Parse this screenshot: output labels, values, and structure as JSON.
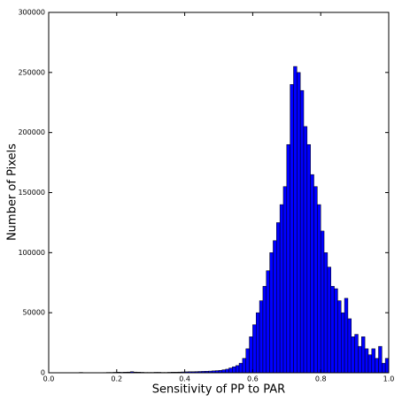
{
  "chart_data": {
    "type": "histogram",
    "xlabel": "Sensitivity of PP to PAR",
    "ylabel": "Number of Pixels",
    "color": "#0000ff",
    "edgecolor": "#000000",
    "bins": [
      0,
      0.01,
      0.02,
      0.03,
      0.04,
      0.05,
      0.06,
      0.07,
      0.08,
      0.09,
      0.1,
      0.11,
      0.12,
      0.13,
      0.14,
      0.15,
      0.16,
      0.17,
      0.18,
      0.19,
      0.2,
      0.21,
      0.22,
      0.23,
      0.24,
      0.25,
      0.26,
      0.27,
      0.28,
      0.29,
      0.3,
      0.31,
      0.32,
      0.33,
      0.34,
      0.35,
      0.36,
      0.37,
      0.38,
      0.39,
      0.4,
      0.41,
      0.42,
      0.43,
      0.44,
      0.45,
      0.46,
      0.47,
      0.48,
      0.49,
      0.5,
      0.51,
      0.52,
      0.53,
      0.54,
      0.55,
      0.56,
      0.57,
      0.58,
      0.59,
      0.6,
      0.61,
      0.62,
      0.63,
      0.64,
      0.65,
      0.66,
      0.67,
      0.68,
      0.69,
      0.7,
      0.71,
      0.72,
      0.73,
      0.74,
      0.75,
      0.76,
      0.77,
      0.78,
      0.79,
      0.8,
      0.81,
      0.82,
      0.83,
      0.84,
      0.85,
      0.86,
      0.87,
      0.88,
      0.89,
      0.9,
      0.91,
      0.92,
      0.93,
      0.94,
      0.95,
      0.96,
      0.97,
      0.98,
      0.99,
      1
    ],
    "values": [
      0,
      0,
      0,
      0,
      0,
      0,
      0,
      0,
      100,
      300,
      100,
      100,
      100,
      100,
      100,
      100,
      200,
      300,
      300,
      400,
      500,
      400,
      500,
      600,
      900,
      600,
      500,
      400,
      300,
      300,
      300,
      400,
      400,
      300,
      300,
      400,
      500,
      500,
      600,
      700,
      800,
      900,
      900,
      1000,
      1100,
      1200,
      1300,
      1400,
      1600,
      1800,
      2000,
      2500,
      3000,
      4000,
      5000,
      6000,
      8000,
      12000,
      20000,
      30000,
      40000,
      50000,
      60000,
      72000,
      85000,
      100000,
      110000,
      125000,
      140000,
      155000,
      190000,
      240000,
      255000,
      250000,
      235000,
      205000,
      190000,
      165000,
      155000,
      140000,
      118000,
      100000,
      88000,
      72000,
      70000,
      60000,
      50000,
      62000,
      45000,
      30000,
      32000,
      22000,
      30000,
      20000,
      15000,
      20000,
      12000,
      22000,
      8000,
      12000
    ],
    "xlim": [
      0,
      1
    ],
    "xticks": [
      {
        "value": 0,
        "label": "0.0"
      },
      0.2,
      0.4,
      0.6,
      0.8,
      {
        "value": 1,
        "label": "1.0"
      }
    ],
    "ylim": [
      0,
      300000
    ],
    "yticks": [
      0,
      50000,
      100000,
      150000,
      200000,
      250000,
      300000
    ]
  }
}
